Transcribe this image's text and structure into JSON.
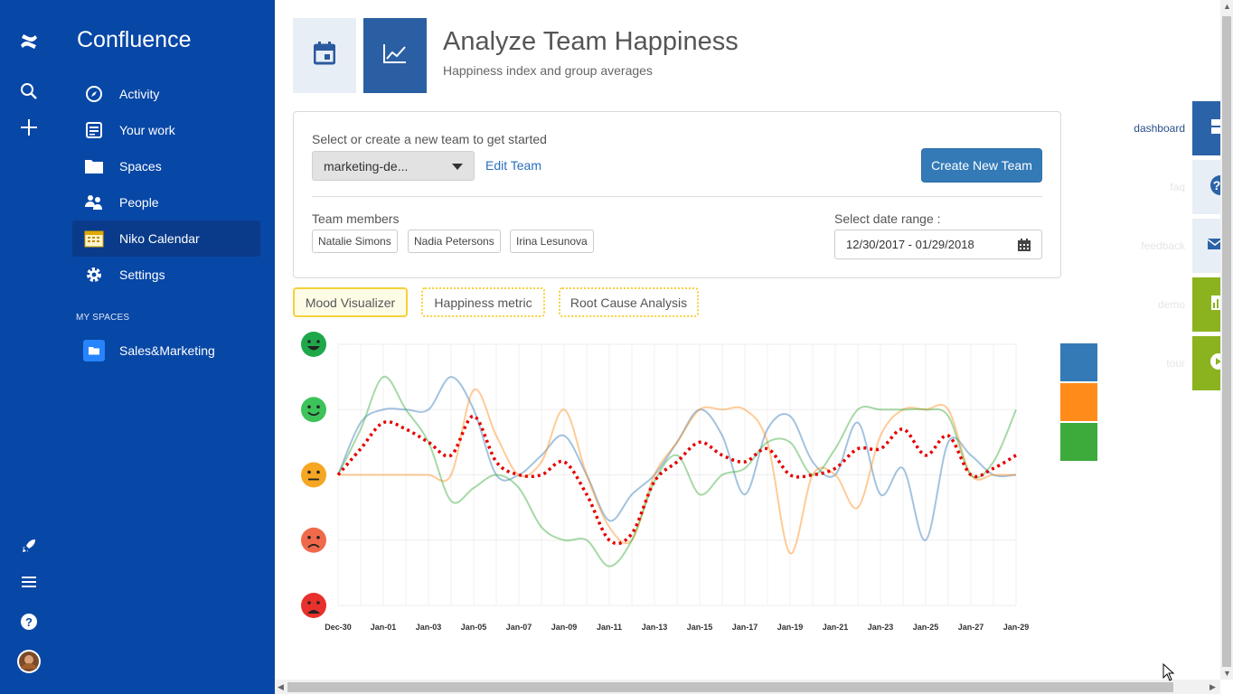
{
  "app": {
    "name": "Confluence"
  },
  "sidebar": {
    "items": [
      {
        "label": "Activity",
        "icon": "compass-icon"
      },
      {
        "label": "Your work",
        "icon": "list-icon"
      },
      {
        "label": "Spaces",
        "icon": "folder-icon"
      },
      {
        "label": "People",
        "icon": "people-icon"
      },
      {
        "label": "Niko Calendar",
        "icon": "calendar-app-icon",
        "active": true
      },
      {
        "label": "Settings",
        "icon": "gear-icon"
      }
    ],
    "my_spaces_heading": "MY SPACES",
    "spaces": [
      {
        "label": "Sales&Marketing",
        "icon": "space-icon"
      }
    ]
  },
  "page": {
    "title": "Analyze Team Happiness",
    "subtitle": "Happiness index and group averages"
  },
  "team_panel": {
    "select_label": "Select or create a new team to get started",
    "selected_team": "marketing-de...",
    "edit_label": "Edit Team",
    "create_label": "Create New Team",
    "members_label": "Team members",
    "members": [
      "Natalie Simons",
      "Nadia Petersons",
      "Irina Lesunova"
    ],
    "date_range_label": "Select date range :",
    "date_range_value": "12/30/2017 - 01/29/2018"
  },
  "tabs": [
    "Mood Visualizer",
    "Happiness metric",
    "Root Cause Analysis"
  ],
  "right_widget": {
    "labels": [
      "dashboard",
      "faq",
      "feedback",
      "demo",
      "tour"
    ]
  },
  "colors": {
    "brand": "#0747a6",
    "series_blue": "#337ab7",
    "series_orange": "#ff8c1a",
    "series_green": "#3cab3c",
    "average": "#e60000",
    "tab_border": "#f5d13a"
  },
  "chart_data": {
    "type": "line",
    "y_scale": "mood levels shown as face icons (5 = very happy, 1 = angry)",
    "ylim": [
      1,
      5
    ],
    "x": [
      "Dec-30",
      "Dec-31",
      "Jan-01",
      "Jan-02",
      "Jan-03",
      "Jan-04",
      "Jan-05",
      "Jan-06",
      "Jan-07",
      "Jan-08",
      "Jan-09",
      "Jan-10",
      "Jan-11",
      "Jan-12",
      "Jan-13",
      "Jan-14",
      "Jan-15",
      "Jan-16",
      "Jan-17",
      "Jan-18",
      "Jan-19",
      "Jan-20",
      "Jan-21",
      "Jan-22",
      "Jan-23",
      "Jan-24",
      "Jan-25",
      "Jan-26",
      "Jan-27",
      "Jan-28",
      "Jan-29"
    ],
    "x_tick_labels": [
      "Dec-30",
      "Jan-01",
      "Jan-03",
      "Jan-05",
      "Jan-07",
      "Jan-09",
      "Jan-11",
      "Jan-13",
      "Jan-15",
      "Jan-17",
      "Jan-19",
      "Jan-21",
      "Jan-23",
      "Jan-25",
      "Jan-27",
      "Jan-29"
    ],
    "series": [
      {
        "color": "blue",
        "values": [
          3,
          3.8,
          4,
          4,
          4,
          4.5,
          4,
          3,
          3,
          3.3,
          3.6,
          3,
          2.3,
          2.7,
          3,
          3.5,
          4,
          3.6,
          2.7,
          3.7,
          3.9,
          3.2,
          3,
          3.8,
          2.7,
          3.1,
          2,
          3.5,
          3.3,
          3,
          3
        ]
      },
      {
        "color": "orange",
        "values": [
          3,
          3,
          3,
          3,
          3,
          3,
          4.3,
          3.6,
          3,
          3.2,
          4,
          3,
          2.2,
          2,
          3,
          3.5,
          4,
          4,
          4,
          3.5,
          1.8,
          3,
          3,
          2.5,
          3.6,
          4,
          4,
          4,
          3,
          3,
          3
        ]
      },
      {
        "color": "green",
        "values": [
          3,
          3.7,
          4.5,
          4,
          3.5,
          2.6,
          2.8,
          3,
          2.8,
          2.2,
          2,
          2,
          1.6,
          2,
          2.9,
          3.3,
          2.7,
          3,
          3.1,
          3.5,
          3.5,
          3,
          3.4,
          4,
          4,
          4,
          4,
          3.9,
          3,
          3.2,
          4
        ]
      },
      {
        "color": "average",
        "style": "dotted",
        "values": [
          3,
          3.4,
          3.8,
          3.7,
          3.5,
          3.3,
          3.9,
          3.2,
          3,
          3,
          3.2,
          2.7,
          2,
          2.1,
          2.9,
          3.2,
          3.5,
          3.3,
          3.2,
          3.4,
          3,
          3,
          3.1,
          3.4,
          3.4,
          3.7,
          3.3,
          3.6,
          3,
          3.1,
          3.3
        ]
      }
    ]
  }
}
